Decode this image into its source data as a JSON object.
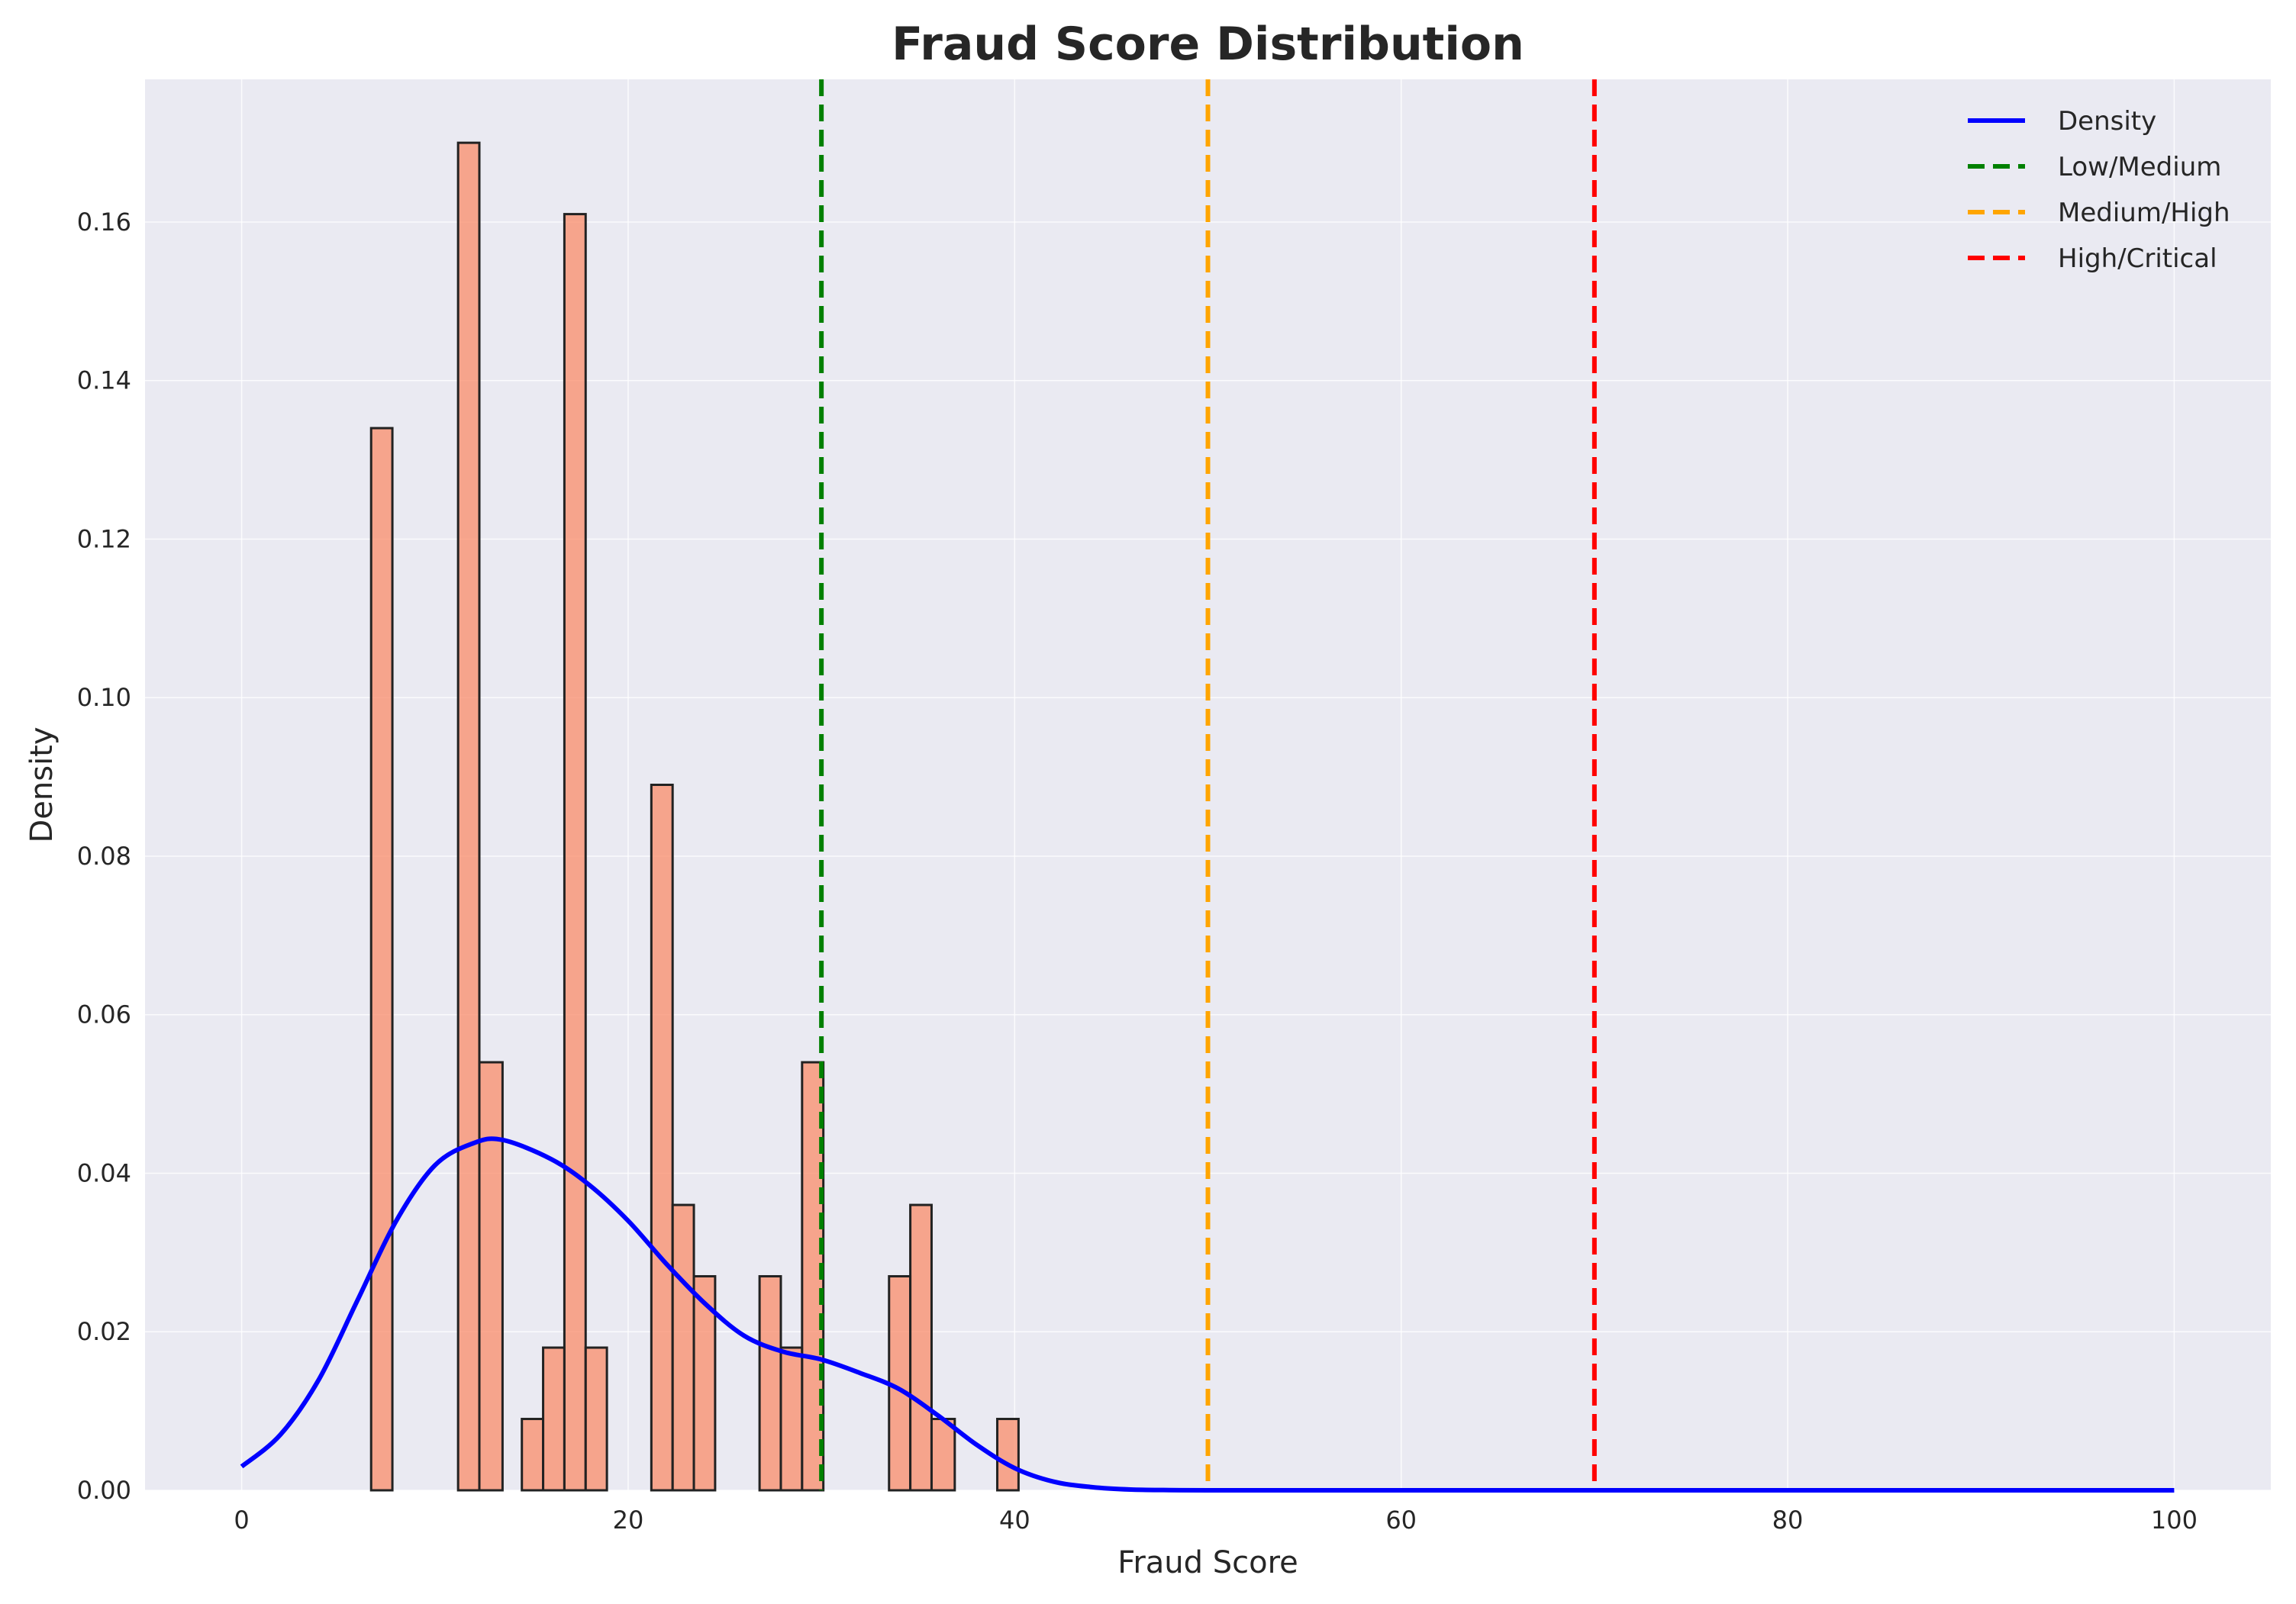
{
  "chart_data": {
    "type": "bar",
    "title": "Fraud Score Distribution",
    "xlabel": "Fraud Score",
    "ylabel": "Density",
    "xlim": [
      -5,
      105
    ],
    "ylim": [
      0,
      0.178
    ],
    "grid": true,
    "legend_position": "top-right",
    "x_ticks": [
      0,
      20,
      40,
      60,
      80,
      100
    ],
    "x_tick_labels": [
      "0",
      "20",
      "40",
      "60",
      "80",
      "100"
    ],
    "y_ticks": [
      0,
      0.02,
      0.04,
      0.06,
      0.08,
      0.1,
      0.12,
      0.14,
      0.16
    ],
    "y_tick_labels": [
      "0.00",
      "0.02",
      "0.04",
      "0.06",
      "0.08",
      "0.10",
      "0.12",
      "0.14",
      "0.16"
    ],
    "histogram": {
      "bar_color": "#fa8c6a",
      "edge_color": "#222222",
      "bins": [
        {
          "x0": 6.7,
          "x1": 7.8,
          "value": 0.134
        },
        {
          "x0": 11.2,
          "x1": 12.3,
          "value": 0.17
        },
        {
          "x0": 12.3,
          "x1": 13.5,
          "value": 0.054
        },
        {
          "x0": 14.5,
          "x1": 15.6,
          "value": 0.009
        },
        {
          "x0": 15.6,
          "x1": 16.7,
          "value": 0.018
        },
        {
          "x0": 16.7,
          "x1": 17.8,
          "value": 0.161
        },
        {
          "x0": 17.8,
          "x1": 18.9,
          "value": 0.018
        },
        {
          "x0": 21.2,
          "x1": 22.3,
          "value": 0.089
        },
        {
          "x0": 22.3,
          "x1": 23.4,
          "value": 0.036
        },
        {
          "x0": 23.4,
          "x1": 24.5,
          "value": 0.027
        },
        {
          "x0": 26.8,
          "x1": 27.9,
          "value": 0.027
        },
        {
          "x0": 27.9,
          "x1": 29.0,
          "value": 0.018
        },
        {
          "x0": 29.0,
          "x1": 30.1,
          "value": 0.054
        },
        {
          "x0": 33.5,
          "x1": 34.6,
          "value": 0.027
        },
        {
          "x0": 34.6,
          "x1": 35.7,
          "value": 0.036
        },
        {
          "x0": 35.7,
          "x1": 36.9,
          "value": 0.009
        },
        {
          "x0": 39.1,
          "x1": 40.2,
          "value": 0.009
        }
      ]
    },
    "series": [
      {
        "name": "Density",
        "kind": "line",
        "color": "#0000ff",
        "x": [
          0,
          2,
          4,
          6,
          8,
          10,
          12,
          13.5,
          16,
          18,
          20,
          22,
          24,
          26,
          28,
          30,
          32,
          34,
          36,
          38,
          40,
          42,
          44,
          46,
          48,
          50,
          55,
          60,
          70,
          80,
          90,
          100
        ],
        "y": [
          0.003,
          0.007,
          0.014,
          0.024,
          0.034,
          0.041,
          0.0438,
          0.0442,
          0.0418,
          0.0385,
          0.034,
          0.0285,
          0.0235,
          0.0195,
          0.0175,
          0.0165,
          0.0148,
          0.0128,
          0.0095,
          0.0058,
          0.0028,
          0.0011,
          0.0004,
          0.0001,
          3e-05,
          0,
          0,
          0,
          0,
          0,
          0,
          0
        ]
      },
      {
        "name": "Low/Medium",
        "kind": "vline",
        "x": 30,
        "color": "#008000"
      },
      {
        "name": "Medium/High",
        "kind": "vline",
        "x": 50,
        "color": "#ffa500"
      },
      {
        "name": "High/Critical",
        "kind": "vline",
        "x": 70,
        "color": "#ff0000"
      }
    ],
    "legend": [
      {
        "label": "Density",
        "color": "#0000ff",
        "dashed": false
      },
      {
        "label": "Low/Medium",
        "color": "#008000",
        "dashed": true
      },
      {
        "label": "Medium/High",
        "color": "#ffa500",
        "dashed": true
      },
      {
        "label": "High/Critical",
        "color": "#ff0000",
        "dashed": true
      }
    ]
  }
}
